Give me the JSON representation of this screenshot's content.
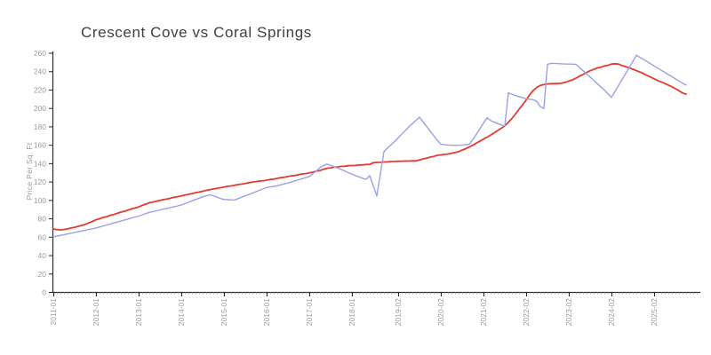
{
  "page": {
    "background": "#ffffff"
  },
  "axis": {
    "line_color": "#2a2a2a",
    "tick_label_color": "#9b9b9b",
    "minor_tick_color": "#b3b3b3",
    "title_color": "#3f3f3f"
  },
  "chart_data": {
    "type": "line",
    "title": "Crescent Cove vs Coral Springs",
    "xlabel": "",
    "ylabel": "Price Per Sq. Ft",
    "grid": false,
    "legend": "none",
    "ylim": [
      0,
      260
    ],
    "y_ticks": [
      0,
      20,
      40,
      60,
      80,
      100,
      120,
      140,
      160,
      180,
      200,
      220,
      240,
      260
    ],
    "x_unit": "month",
    "x_start": "2011-01",
    "x_tick_labels": [
      "2011-01",
      "2012-01",
      "2013-01",
      "2014-01",
      "2015-01",
      "2016-01",
      "2017-01",
      "2018-01",
      "2019-02",
      "2020-02",
      "2021-02",
      "2022-02",
      "2023-02",
      "2024-02",
      "2025-02"
    ],
    "x_tick_month_index": [
      0,
      12,
      24,
      36,
      48,
      60,
      72,
      84,
      97,
      109,
      121,
      133,
      145,
      157,
      169
    ],
    "series": [
      {
        "name": "Crescent Cove",
        "color": "#e33b2e",
        "width": 1.8,
        "values": [
          69,
          68.3,
          68,
          68.4,
          69.1,
          70,
          70.8,
          71.9,
          72.8,
          74,
          75.6,
          77.2,
          79,
          80.1,
          81.5,
          82.4,
          83.8,
          84.7,
          86,
          87.3,
          88.2,
          89.5,
          90.8,
          91.7,
          93,
          94.6,
          96,
          97.4,
          98.3,
          99.1,
          100,
          100.9,
          101.6,
          102.5,
          103.4,
          104.1,
          105,
          105.9,
          106.6,
          107.5,
          108.4,
          109.1,
          110,
          110.9,
          111.6,
          112.5,
          113.1,
          113.8,
          114.5,
          115.3,
          115.8,
          116.5,
          117.3,
          117.8,
          118.5,
          119.3,
          119.8,
          120.5,
          121.1,
          121.4,
          122,
          122.8,
          123.2,
          124,
          124.8,
          125.2,
          126,
          126.8,
          127.2,
          128,
          128.8,
          129.2,
          130,
          130.7,
          131.8,
          132.5,
          133.9,
          135,
          135.4,
          136.1,
          136.4,
          137.1,
          137.2,
          137.8,
          138,
          138.1,
          138.6,
          138.6,
          139.1,
          139.1,
          141,
          141.3,
          141.4,
          141.8,
          141.9,
          142.3,
          142.4,
          142.6,
          142.6,
          142.9,
          142.8,
          143.1,
          143,
          144,
          145.1,
          145.9,
          147.1,
          147.9,
          149.1,
          149.4,
          150.1,
          150.4,
          151.3,
          152,
          153,
          154.7,
          156.2,
          158.1,
          160,
          162.4,
          164.4,
          166.7,
          168.7,
          171.1,
          173.4,
          176.1,
          178.4,
          181.1,
          184.9,
          189.1,
          193.9,
          199.1,
          203.9,
          209.1,
          214.9,
          219.6,
          222.9,
          225.1,
          225.9,
          226.6,
          226.9,
          227.1,
          227,
          227.6,
          228.4,
          229.8,
          231,
          232.9,
          235.1,
          236.9,
          239.1,
          241,
          242.4,
          244.1,
          244.9,
          246.1,
          246.9,
          248.2,
          248.6,
          248.2,
          246.6,
          245.4,
          244.1,
          242.6,
          241.1,
          239.6,
          237.8,
          235.9,
          234.1,
          232.2,
          230.3,
          228.8,
          227.1,
          225.4,
          223.6,
          221.5,
          219.2,
          216.9,
          215.4
        ]
      },
      {
        "name": "Coral Springs",
        "color": "#9aa0e8",
        "width": 1.4,
        "values": [
          60.5,
          61.2,
          62,
          62.8,
          63.6,
          64.4,
          65.2,
          66,
          66.8,
          67.6,
          68.4,
          69.2,
          70,
          71.1,
          72.2,
          73.3,
          74.4,
          75.5,
          76.5,
          77.6,
          78.7,
          79.8,
          80.9,
          82,
          83,
          84.3,
          85.7,
          87,
          87.9,
          88.8,
          89.7,
          90.6,
          91.4,
          92.3,
          93.2,
          94.1,
          95,
          96.5,
          98,
          99.5,
          101,
          102.5,
          104,
          105,
          106,
          105.2,
          103.5,
          102.2,
          101,
          100.8,
          100.6,
          100.5,
          102,
          103.5,
          105,
          106.5,
          108,
          109.5,
          111,
          112.5,
          114,
          114.7,
          115.3,
          116,
          117,
          118,
          119,
          120.2,
          121.3,
          122.5,
          123.7,
          124.8,
          126,
          129,
          132,
          135.5,
          138,
          139.6,
          138.2,
          136.6,
          135.1,
          133.6,
          132,
          130.1,
          128.6,
          127.1,
          125.6,
          124.1,
          123,
          127,
          116,
          105,
          129,
          153,
          157,
          160.5,
          164,
          168,
          172,
          176,
          180,
          183.5,
          187,
          190.5,
          185.5,
          180.5,
          175.5,
          170.5,
          165.5,
          161,
          160.5,
          160.2,
          160,
          160,
          160,
          160.2,
          160.5,
          161,
          166,
          172,
          178,
          184,
          190,
          187,
          185,
          183.5,
          182,
          181,
          217,
          215.5,
          214,
          212.8,
          211.7,
          210.5,
          210,
          209.5,
          207.5,
          202,
          200,
          248,
          249,
          249,
          248.7,
          248.5,
          248.3,
          248.2,
          248.1,
          248,
          244.5,
          241,
          237.5,
          234,
          230.5,
          227,
          223.5,
          220,
          216,
          212,
          218.5,
          225,
          231.5,
          238,
          244.5,
          251,
          258,
          255.6,
          253.3,
          251,
          248.6,
          246.2,
          243.9,
          241.5,
          239.2,
          236.8,
          234.5,
          232.1,
          229.8,
          227.4,
          225.5
        ]
      }
    ]
  }
}
